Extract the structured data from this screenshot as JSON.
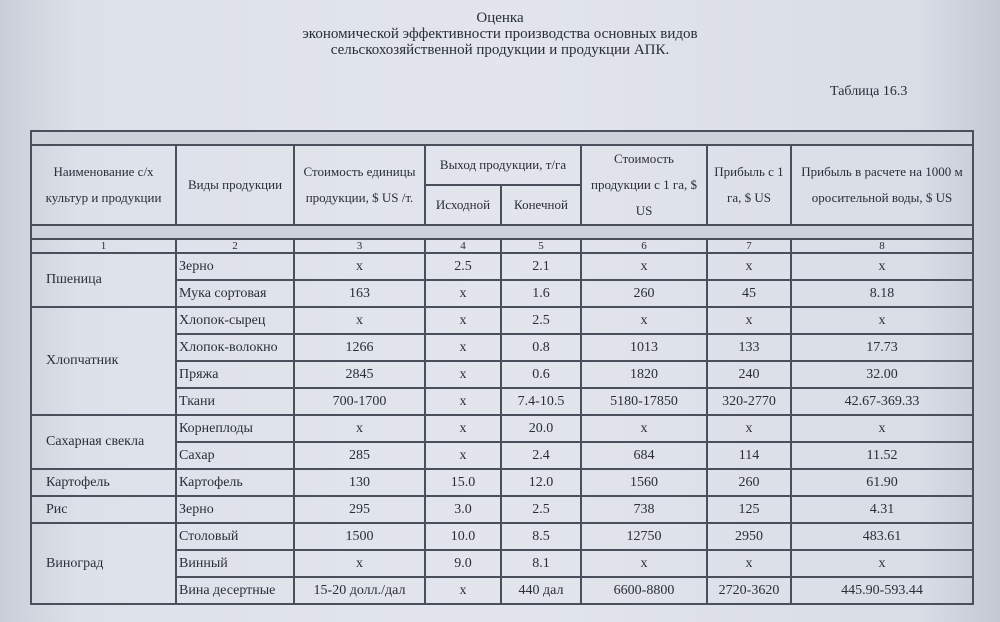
{
  "title": {
    "line1": "Оценка",
    "line2": "экономической эффективности производства основных видов",
    "line3": "сельскохозяйственной продукции и продукции АПК."
  },
  "table_number": "Таблица 16.3",
  "headers": {
    "crop": "Наименование  с/х культур и продукции",
    "product": "Виды продукции",
    "unit_cost": "Стоимость единицы продукции, $ US /т.",
    "yield": "Выход продукции, т/га",
    "yield_initial": "Исходной",
    "yield_final": "Конечной",
    "value_per_ha": "Стоимость продукции с 1 га,  $ US",
    "profit_per_ha": "Прибыль с 1 га, $ US",
    "profit_per_water": "Прибыль в расчете на 1000 м оросительной воды,  $ US"
  },
  "column_numbers": [
    "1",
    "2",
    "3",
    "4",
    "5",
    "6",
    "7",
    "8"
  ],
  "groups": [
    {
      "crop": "Пшеница",
      "rows": [
        [
          "Зерно",
          "x",
          "2.5",
          "2.1",
          "x",
          "x",
          "x"
        ],
        [
          "Мука сортовая",
          "163",
          "x",
          "1.6",
          "260",
          "45",
          "8.18"
        ]
      ]
    },
    {
      "crop": "Хлопчатник",
      "rows": [
        [
          "Хлопок-сырец",
          "x",
          "x",
          "2.5",
          "x",
          "x",
          "x"
        ],
        [
          "Хлопок-волокно",
          "1266",
          "x",
          "0.8",
          "1013",
          "133",
          "17.73"
        ],
        [
          "Пряжа",
          "2845",
          "x",
          "0.6",
          "1820",
          "240",
          "32.00"
        ],
        [
          "Ткани",
          "700-1700",
          "x",
          "7.4-10.5",
          "5180-17850",
          "320-2770",
          "42.67-369.33"
        ]
      ]
    },
    {
      "crop": "Сахарная свекла",
      "rows": [
        [
          "Корнеплоды",
          "x",
          "x",
          "20.0",
          "x",
          "x",
          "x"
        ],
        [
          "Сахар",
          "285",
          "x",
          "2.4",
          "684",
          "114",
          "11.52"
        ]
      ]
    },
    {
      "crop": "Картофель",
      "rows": [
        [
          "Картофель",
          "130",
          "15.0",
          "12.0",
          "1560",
          "260",
          "61.90"
        ]
      ]
    },
    {
      "crop": "Рис",
      "rows": [
        [
          "Зерно",
          "295",
          "3.0",
          "2.5",
          "738",
          "125",
          "4.31"
        ]
      ]
    },
    {
      "crop": "Виноград",
      "rows": [
        [
          "Столовый",
          "1500",
          "10.0",
          "8.5",
          "12750",
          "2950",
          "483.61"
        ],
        [
          "Винный",
          "x",
          "9.0",
          "8.1",
          "x",
          "x",
          "x"
        ],
        [
          "Вина десертные",
          "15-20 долл./дал",
          "x",
          "440 дал",
          "6600-8800",
          "2720-3620",
          "445.90-593.44"
        ]
      ]
    }
  ]
}
